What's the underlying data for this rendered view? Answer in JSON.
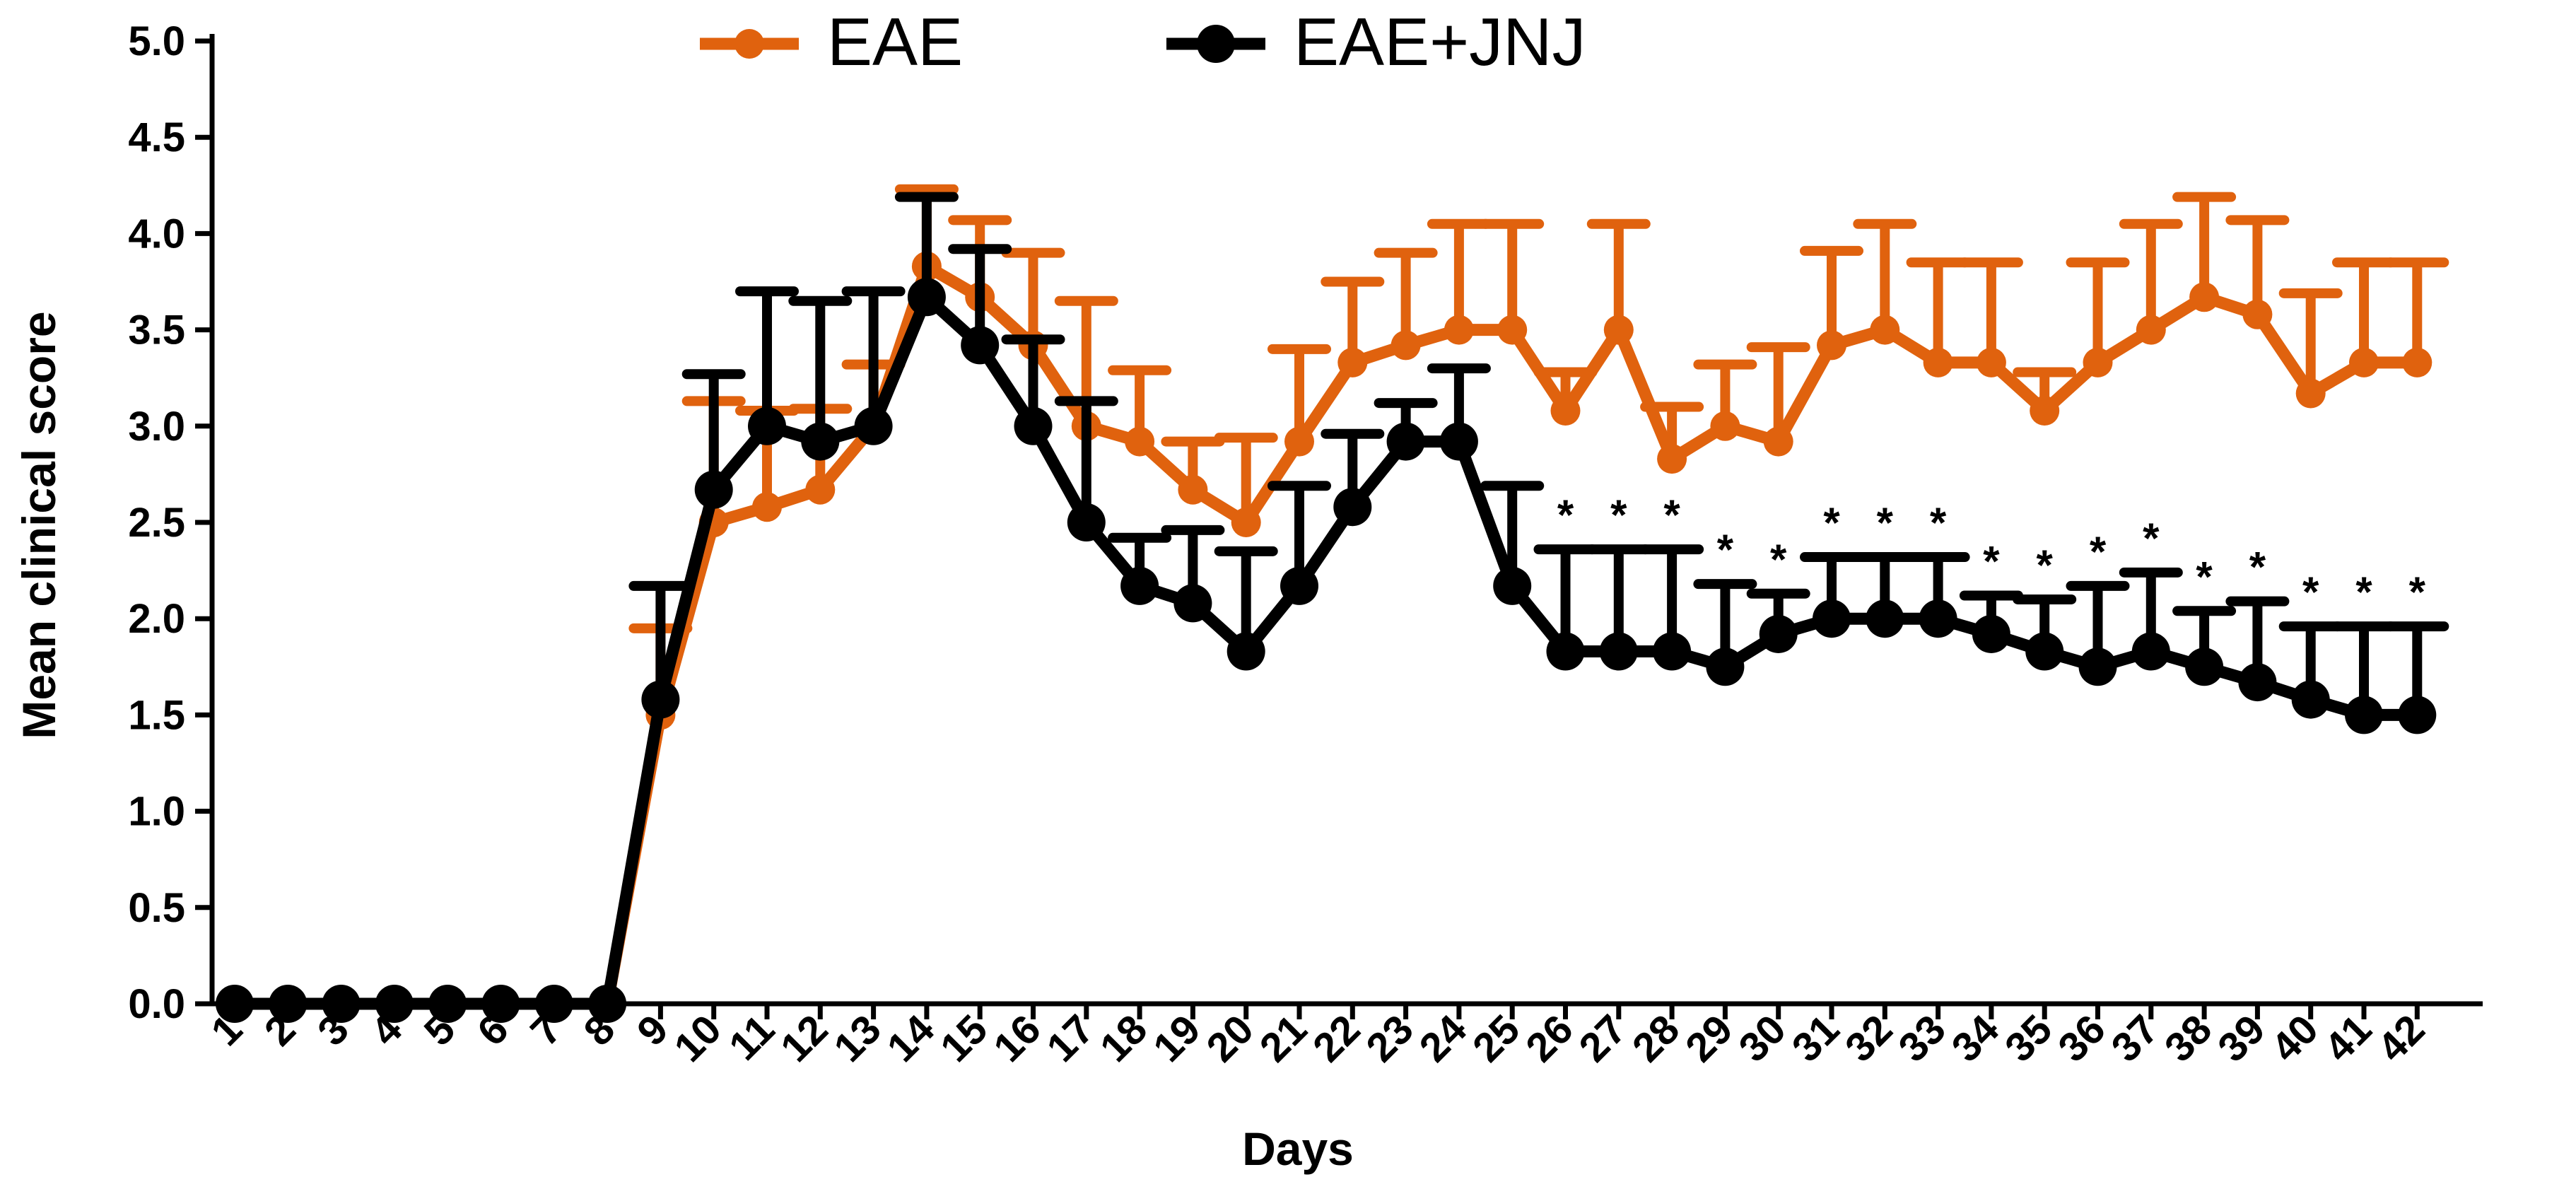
{
  "chart_data": {
    "type": "line",
    "xlabel": "Days",
    "ylabel": "Mean clinical score",
    "ylim": [
      0,
      5
    ],
    "y_ticks": [
      "0.0",
      "0.5",
      "1.0",
      "1.5",
      "2.0",
      "2.5",
      "3.0",
      "3.5",
      "4.0",
      "4.5",
      "5.0"
    ],
    "x": [
      1,
      2,
      3,
      4,
      5,
      6,
      7,
      8,
      9,
      10,
      11,
      12,
      13,
      14,
      15,
      16,
      17,
      18,
      19,
      20,
      21,
      22,
      23,
      24,
      25,
      26,
      27,
      28,
      29,
      30,
      31,
      32,
      33,
      34,
      35,
      36,
      37,
      38,
      39,
      40,
      41,
      42
    ],
    "legend_position": "top-center",
    "grid": false,
    "significance_marker": "*",
    "significant_days": [
      26,
      27,
      28,
      29,
      30,
      31,
      32,
      33,
      34,
      35,
      36,
      37,
      38,
      39,
      40,
      41,
      42
    ],
    "series": [
      {
        "name": "EAE",
        "color": "#E0620E",
        "values": [
          0,
          0,
          0,
          0,
          0,
          0,
          0,
          0,
          1.5,
          2.5,
          2.58,
          2.67,
          3.0,
          3.83,
          3.67,
          3.42,
          3.0,
          2.92,
          2.67,
          2.5,
          2.92,
          3.33,
          3.42,
          3.5,
          3.5,
          3.08,
          3.5,
          2.83,
          3.0,
          2.92,
          3.42,
          3.5,
          3.33,
          3.33,
          3.08,
          3.33,
          3.5,
          3.67,
          3.58,
          3.17,
          3.33,
          3.33
        ],
        "error": [
          0,
          0,
          0,
          0,
          0,
          0,
          0,
          0,
          0.45,
          0.63,
          0.5,
          0.42,
          0.32,
          0.4,
          0.4,
          0.48,
          0.65,
          0.37,
          0.25,
          0.44,
          0.48,
          0.42,
          0.48,
          0.55,
          0.55,
          0.2,
          0.55,
          0.27,
          0.32,
          0.49,
          0.49,
          0.55,
          0.52,
          0.52,
          0.2,
          0.52,
          0.55,
          0.52,
          0.49,
          0.52,
          0.52,
          0.52
        ]
      },
      {
        "name": "EAE+JNJ",
        "color": "#000000",
        "values": [
          0,
          0,
          0,
          0,
          0,
          0,
          0,
          0,
          1.58,
          2.67,
          3.0,
          2.92,
          3.0,
          3.67,
          3.42,
          3.0,
          2.5,
          2.17,
          2.08,
          1.83,
          2.17,
          2.58,
          2.92,
          2.92,
          2.17,
          1.83,
          1.83,
          1.83,
          1.75,
          1.92,
          2.0,
          2.0,
          2.0,
          1.92,
          1.83,
          1.75,
          1.83,
          1.75,
          1.67,
          1.58,
          1.5,
          1.5
        ],
        "error": [
          0,
          0,
          0,
          0,
          0,
          0,
          0,
          0,
          0.59,
          0.6,
          0.7,
          0.73,
          0.7,
          0.52,
          0.5,
          0.45,
          0.63,
          0.25,
          0.38,
          0.52,
          0.52,
          0.38,
          0.2,
          0.38,
          0.52,
          0.53,
          0.53,
          0.53,
          0.43,
          0.21,
          0.32,
          0.32,
          0.32,
          0.2,
          0.27,
          0.42,
          0.41,
          0.29,
          0.42,
          0.38,
          0.46,
          0.46
        ]
      }
    ]
  }
}
